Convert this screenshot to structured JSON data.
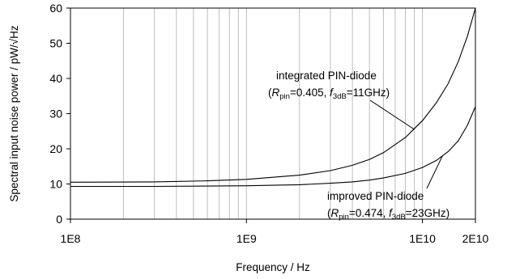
{
  "chart_data": {
    "type": "line",
    "title": "",
    "xlabel": "Frequency / Hz",
    "ylabel": "Spectral input noise power / pW/√Hz",
    "x_scale": "log",
    "xlim": [
      100000000,
      20000000000
    ],
    "ylim": [
      0,
      60
    ],
    "grid": true,
    "x_tick_labels": [
      {
        "value": 100000000,
        "label": "1E8"
      },
      {
        "value": 1000000000,
        "label": "1E9"
      },
      {
        "value": 10000000000,
        "label": "1E10"
      },
      {
        "value": 20000000000,
        "label": "2E10"
      }
    ],
    "y_ticks": [
      0,
      10,
      20,
      30,
      40,
      50,
      60
    ],
    "y_tick_labels": [
      "0",
      "10",
      "20",
      "30",
      "40",
      "50",
      "60"
    ],
    "series": [
      {
        "x": [
          100000000,
          300000000,
          600000000,
          1000000000,
          2000000000,
          3000000000,
          4000000000,
          5000000000,
          6000000000,
          8000000000,
          10000000000,
          12000000000,
          14000000000,
          16000000000,
          18000000000,
          20000000000
        ],
        "y": [
          10.5,
          10.6,
          10.9,
          11.3,
          12.5,
          13.8,
          15.3,
          17.0,
          18.9,
          23.2,
          28.0,
          33.1,
          38.5,
          44.8,
          52.0,
          60.0
        ]
      },
      {
        "x": [
          100000000,
          300000000,
          600000000,
          1000000000,
          2000000000,
          3000000000,
          4000000000,
          5000000000,
          6000000000,
          8000000000,
          10000000000,
          12000000000,
          14000000000,
          16000000000,
          18000000000,
          20000000000
        ],
        "y": [
          9.3,
          9.3,
          9.4,
          9.5,
          9.8,
          10.2,
          10.6,
          11.1,
          11.7,
          13.0,
          14.7,
          16.7,
          19.2,
          22.3,
          26.7,
          32.0
        ]
      }
    ],
    "annotations": [
      {
        "line1": "integrated PIN-diode",
        "open": "(",
        "r": "R",
        "r_sub": "pin",
        "r_val": "=0.405, ",
        "f": "f",
        "f_sub": "3dB",
        "f_val": "=11GHz)",
        "points_to": {
          "x": 9000000000,
          "y": 25.5
        }
      },
      {
        "line1": "improved PIN-diode",
        "open": "(",
        "r": "R",
        "r_sub": "pin",
        "r_val": "=0.474, ",
        "f": "f",
        "f_sub": "3dB",
        "f_val": "=23GHz)",
        "points_to": {
          "x": 13000000000,
          "y": 18.0
        }
      }
    ]
  }
}
